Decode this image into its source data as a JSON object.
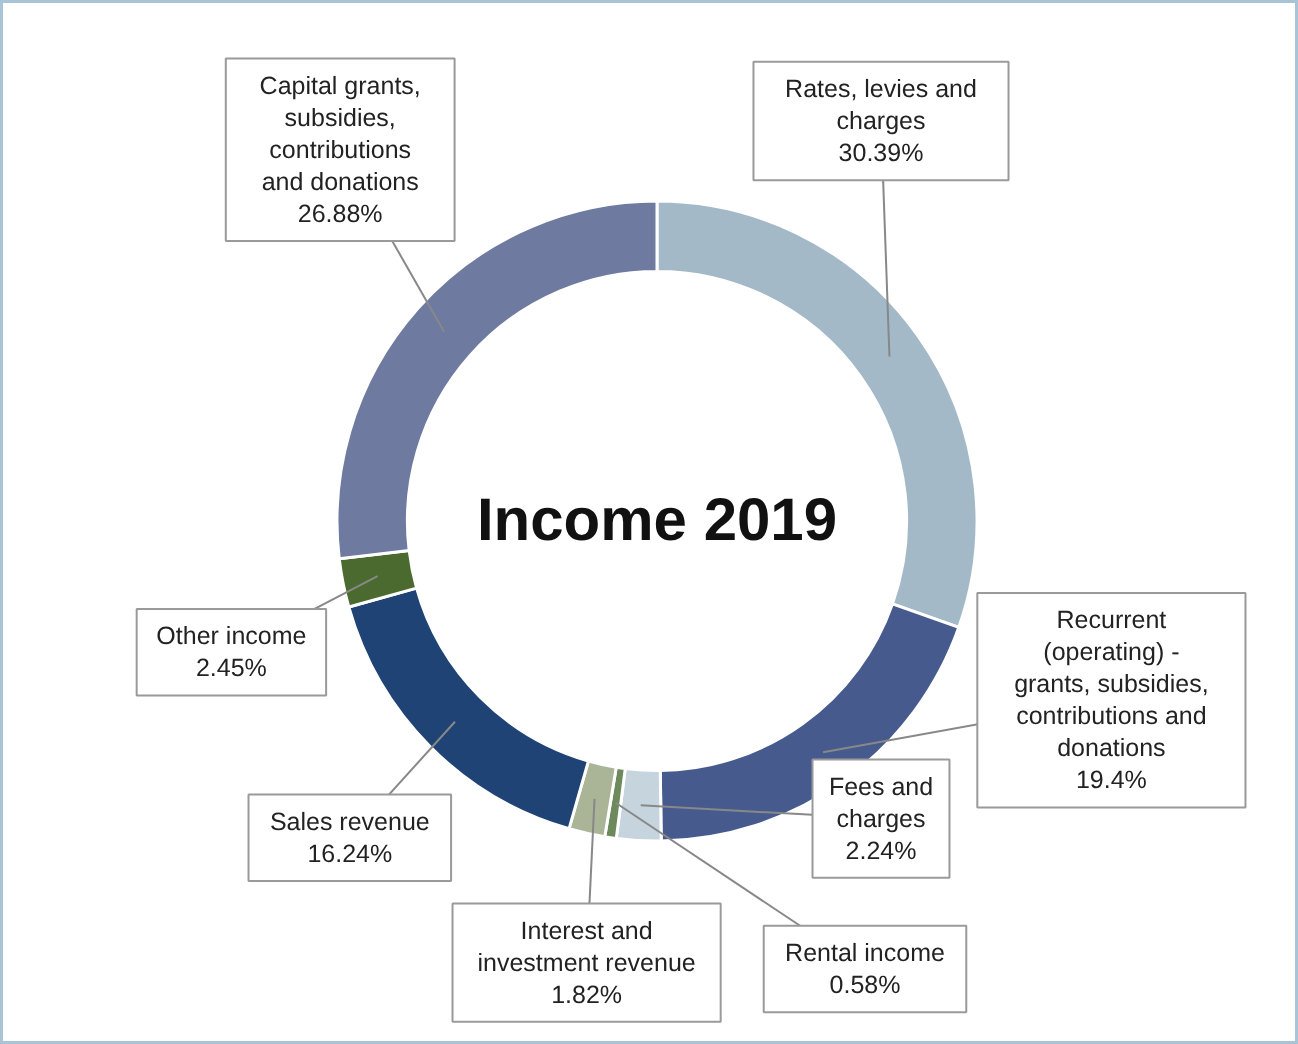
{
  "chart_data": {
    "type": "donut",
    "title": "Income 2019",
    "categories": [
      "Rates, levies and charges",
      "Recurrent (operating) - grants, subsidies, contributions and donations",
      "Fees and charges",
      "Rental income",
      "Interest and investment revenue",
      "Sales revenue",
      "Other income",
      "Capital grants, subsidies, contributions and donations"
    ],
    "values": [
      30.39,
      19.4,
      2.24,
      0.58,
      1.82,
      16.24,
      2.45,
      26.88
    ],
    "colors": [
      "#a3b9c7",
      "#475a8d",
      "#c6d4de",
      "#6d8a5c",
      "#a9b596",
      "#1e4374",
      "#4b6a2f",
      "#6e7a9f"
    ],
    "value_labels": [
      "30.39%",
      "19.4%",
      "2.24%",
      "0.58%",
      "1.82%",
      "16.24%",
      "2.45%",
      "26.88%"
    ]
  }
}
